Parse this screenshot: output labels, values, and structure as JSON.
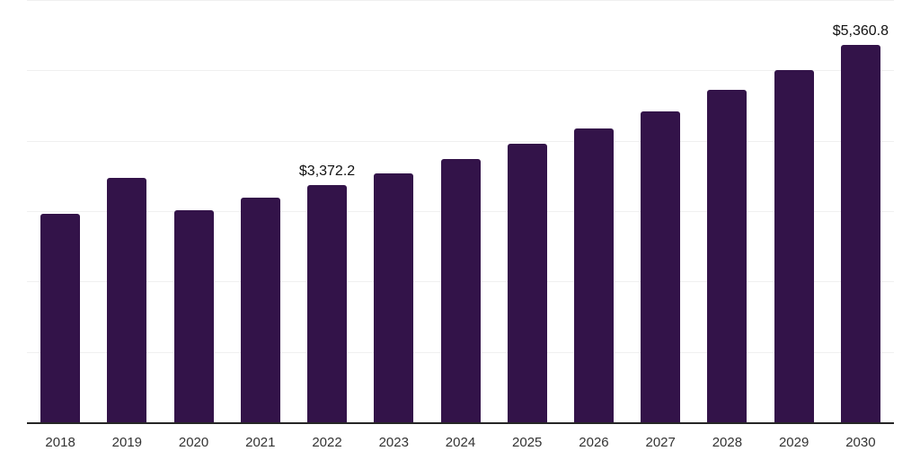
{
  "chart_data": {
    "type": "bar",
    "title": "",
    "xlabel": "",
    "ylabel": "",
    "categories": [
      "2018",
      "2019",
      "2020",
      "2021",
      "2022",
      "2023",
      "2024",
      "2025",
      "2026",
      "2027",
      "2028",
      "2029",
      "2030"
    ],
    "values": [
      2968,
      3467,
      3007,
      3186,
      3372.2,
      3540,
      3739,
      3957,
      4180,
      4423,
      4721,
      5002,
      5360.8
    ],
    "value_labels": {
      "2022": "$3,372.2",
      "2030": "$5,360.8"
    },
    "ylim": [
      0,
      6000
    ],
    "gridline_step": 1000,
    "grid": true,
    "legend": false
  },
  "colors": {
    "background": "#ffffff",
    "bar": "#331349",
    "axis_line": "#262626",
    "gridline": "#f0f0f0",
    "value_label_text": "#111111",
    "tick_label_text": "#333333"
  }
}
